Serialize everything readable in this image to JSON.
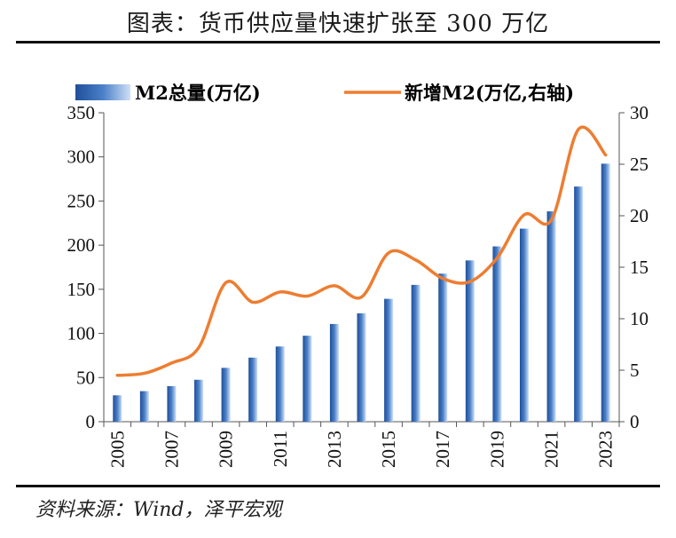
{
  "title": "图表：货币供应量快速扩张至 300 万亿",
  "source": "资料来源：Wind，泽平宏观",
  "colors": {
    "bar": "#4a80c8",
    "line": "#ed7d31",
    "axis": "#555555"
  },
  "chart_data": {
    "type": "bar+line",
    "categories": [
      "2005",
      "2006",
      "2007",
      "2008",
      "2009",
      "2010",
      "2011",
      "2012",
      "2013",
      "2014",
      "2015",
      "2016",
      "2017",
      "2018",
      "2019",
      "2020",
      "2021",
      "2022",
      "2023"
    ],
    "x_tick_labels": [
      "2005",
      "2007",
      "2009",
      "2011",
      "2013",
      "2015",
      "2017",
      "2019",
      "2021",
      "2023"
    ],
    "series": [
      {
        "name": "M2总量(万亿)",
        "type": "bar",
        "axis": "left",
        "values": [
          29.9,
          34.6,
          40.3,
          47.5,
          61.0,
          72.6,
          85.2,
          97.4,
          110.7,
          122.8,
          139.2,
          155.0,
          167.7,
          182.7,
          198.6,
          218.7,
          238.3,
          266.4,
          292.3
        ]
      },
      {
        "name": "新增M2(万亿,右轴)",
        "type": "line",
        "axis": "right",
        "values": [
          4.5,
          4.7,
          5.7,
          7.2,
          13.5,
          11.6,
          12.6,
          12.2,
          13.2,
          12.1,
          16.4,
          15.7,
          13.9,
          13.6,
          15.9,
          20.1,
          19.6,
          28.4,
          25.9
        ]
      }
    ],
    "ylim_left": [
      0,
      350
    ],
    "yticks_left": [
      0,
      50,
      100,
      150,
      200,
      250,
      300,
      350
    ],
    "ylim_right": [
      0,
      30
    ],
    "yticks_right": [
      0,
      5,
      10,
      15,
      20,
      25,
      30
    ],
    "legend_position": "top"
  }
}
